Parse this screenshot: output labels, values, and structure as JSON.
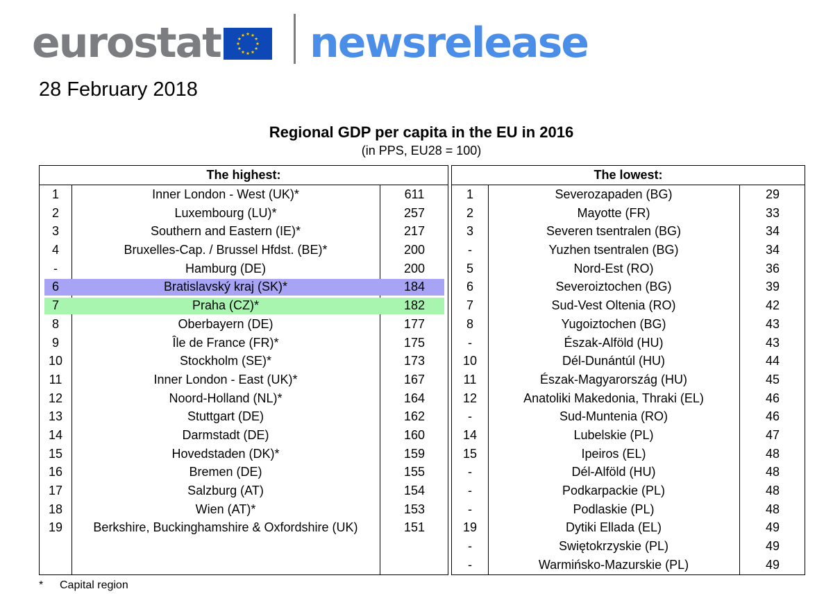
{
  "header": {
    "brand": "eurostat",
    "product": "newsrelease",
    "flag_icon": "eu-flag-icon",
    "colors": {
      "brand_grey": "#7b7d80",
      "news_blue": "#4a8ee8",
      "flag_blue": "#0e47b6",
      "flag_star": "#ffd400"
    }
  },
  "date": "28 February 2018",
  "table": {
    "title": "Regional GDP per capita in the EU in 2016",
    "subtitle": "(in PPS, EU28 = 100)",
    "highest": {
      "heading": "The highest:",
      "rows": [
        {
          "rank": "1",
          "region": "Inner London - West (UK)*",
          "value": "611"
        },
        {
          "rank": "2",
          "region": "Luxembourg (LU)*",
          "value": "257"
        },
        {
          "rank": "3",
          "region": "Southern and Eastern (IE)*",
          "value": "217"
        },
        {
          "rank": "4",
          "region": "Bruxelles-Cap. / Brussel Hfdst. (BE)*",
          "value": "200"
        },
        {
          "rank": "-",
          "region": "Hamburg (DE)",
          "value": "200"
        },
        {
          "rank": "6",
          "region": "Bratislavský kraj (SK)*",
          "value": "184",
          "highlight": "#a7a4f6"
        },
        {
          "rank": "7",
          "region": "Praha (CZ)*",
          "value": "182",
          "highlight": "#a8f5b0"
        },
        {
          "rank": "8",
          "region": "Oberbayern (DE)",
          "value": "177"
        },
        {
          "rank": "9",
          "region": "Île de France (FR)*",
          "value": "175"
        },
        {
          "rank": "10",
          "region": "Stockholm (SE)*",
          "value": "173"
        },
        {
          "rank": "11",
          "region": "Inner London - East (UK)*",
          "value": "167"
        },
        {
          "rank": "12",
          "region": "Noord-Holland (NL)*",
          "value": "164"
        },
        {
          "rank": "13",
          "region": "Stuttgart (DE)",
          "value": "162"
        },
        {
          "rank": "14",
          "region": "Darmstadt (DE)",
          "value": "160"
        },
        {
          "rank": "15",
          "region": "Hovedstaden (DK)*",
          "value": "159"
        },
        {
          "rank": "16",
          "region": "Bremen (DE)",
          "value": "155"
        },
        {
          "rank": "17",
          "region": "Salzburg (AT)",
          "value": "154"
        },
        {
          "rank": "18",
          "region": "Wien (AT)*",
          "value": "153"
        },
        {
          "rank": "19",
          "region": "Berkshire, Buckinghamshire & Oxfordshire (UK)",
          "value": "151"
        }
      ]
    },
    "lowest": {
      "heading": "The lowest:",
      "rows": [
        {
          "rank": "1",
          "region": "Severozapaden (BG)",
          "value": "29"
        },
        {
          "rank": "2",
          "region": "Mayotte (FR)",
          "value": "33"
        },
        {
          "rank": "3",
          "region": "Severen tsentralen (BG)",
          "value": "34"
        },
        {
          "rank": "-",
          "region": "Yuzhen tsentralen (BG)",
          "value": "34"
        },
        {
          "rank": "5",
          "region": "Nord-Est (RO)",
          "value": "36"
        },
        {
          "rank": "6",
          "region": "Severoiztochen (BG)",
          "value": "39"
        },
        {
          "rank": "7",
          "region": "Sud-Vest Oltenia (RO)",
          "value": "42"
        },
        {
          "rank": "8",
          "region": "Yugoiztochen (BG)",
          "value": "43"
        },
        {
          "rank": "-",
          "region": "Észak-Alföld (HU)",
          "value": "43"
        },
        {
          "rank": "10",
          "region": "Dél-Dunántúl (HU)",
          "value": "44"
        },
        {
          "rank": "11",
          "region": "Észak-Magyarország (HU)",
          "value": "45"
        },
        {
          "rank": "12",
          "region": "Anatoliki Makedonia, Thraki (EL)",
          "value": "46"
        },
        {
          "rank": "-",
          "region": "Sud-Muntenia (RO)",
          "value": "46"
        },
        {
          "rank": "14",
          "region": "Lubelskie (PL)",
          "value": "47"
        },
        {
          "rank": "15",
          "region": "Ipeiros (EL)",
          "value": "48"
        },
        {
          "rank": "-",
          "region": "Dél-Alföld (HU)",
          "value": "48"
        },
        {
          "rank": "-",
          "region": "Podkarpackie (PL)",
          "value": "48"
        },
        {
          "rank": "-",
          "region": "Podlaskie (PL)",
          "value": "48"
        },
        {
          "rank": "19",
          "region": "Dytiki Ellada (EL)",
          "value": "49"
        },
        {
          "rank": "-",
          "region": "Swiętokrzyskie (PL)",
          "value": "49"
        },
        {
          "rank": "-",
          "region": "Warmińsko-Mazurskie (PL)",
          "value": "49"
        }
      ]
    }
  },
  "footnote": {
    "mark": "*",
    "text": "Capital region"
  }
}
